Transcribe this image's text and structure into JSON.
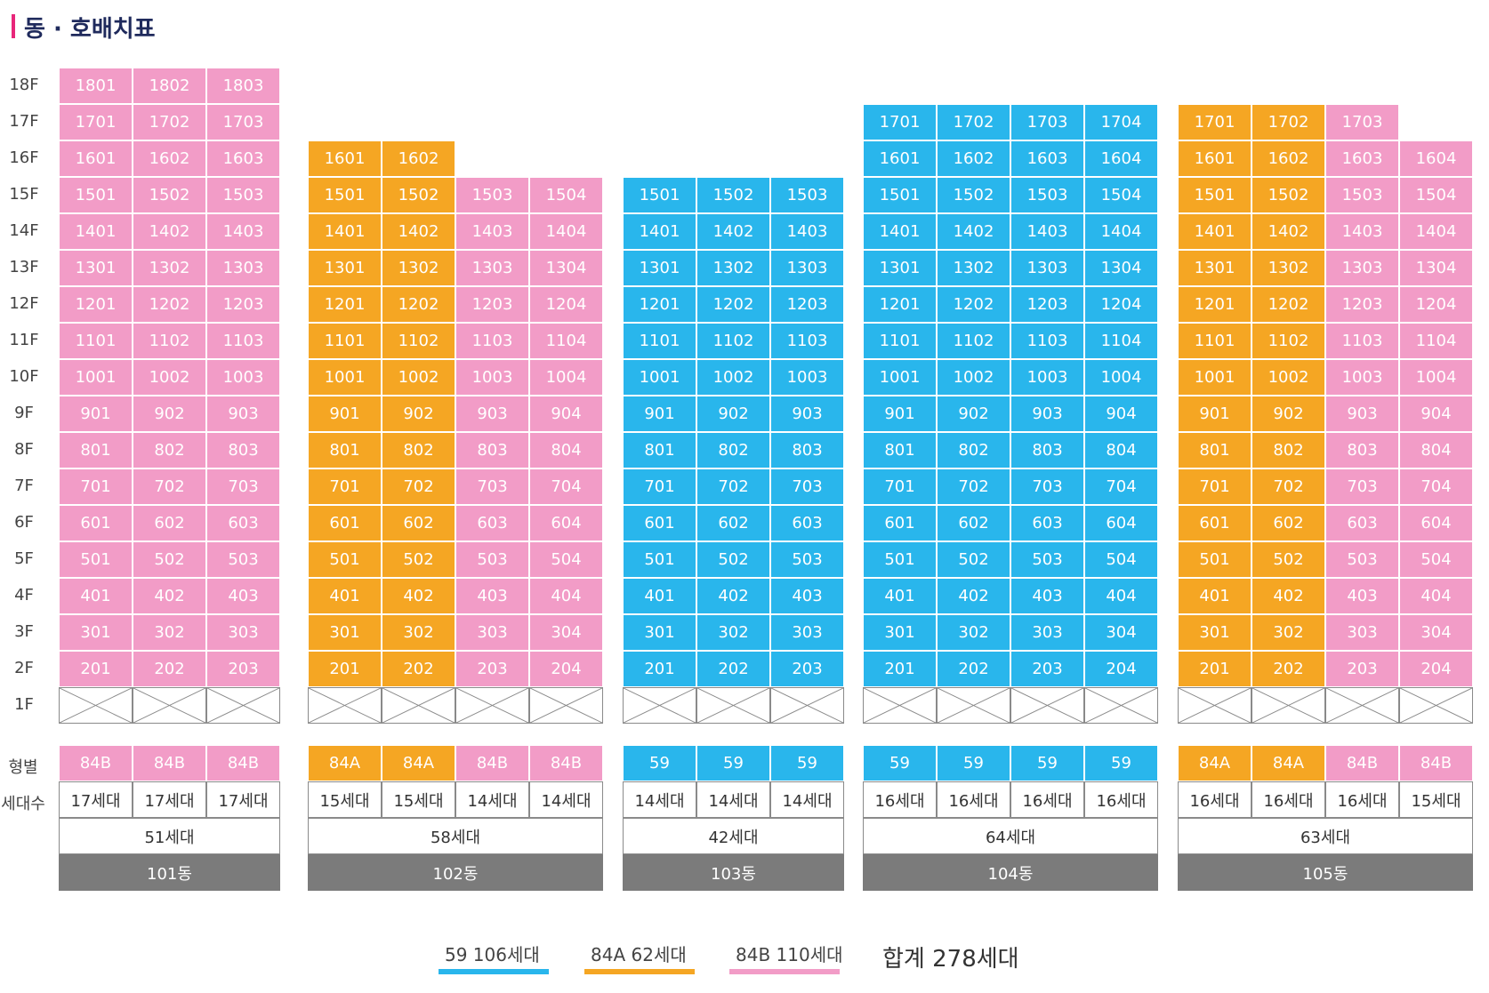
{
  "title": "동 · 호배치표",
  "floors": [
    "18F",
    "17F",
    "16F",
    "15F",
    "14F",
    "13F",
    "12F",
    "11F",
    "10F",
    "9F",
    "8F",
    "7F",
    "6F",
    "5F",
    "4F",
    "3F",
    "2F",
    "1F"
  ],
  "row_labels": {
    "type": "형별",
    "households": "세대수"
  },
  "colors": {
    "59": "#29b6ec",
    "84A": "#f5a623",
    "84B": "#f29cc7",
    "building": "#7b7b7b",
    "title_accent": "#e8267a"
  },
  "buildings": [
    {
      "name": "101동",
      "total": "51세대",
      "lines": [
        {
          "type": "84B",
          "count": "17세대",
          "top_floor": 18,
          "unit_suffix": "01"
        },
        {
          "type": "84B",
          "count": "17세대",
          "top_floor": 18,
          "unit_suffix": "02"
        },
        {
          "type": "84B",
          "count": "17세대",
          "top_floor": 18,
          "unit_suffix": "03"
        }
      ]
    },
    {
      "name": "102동",
      "total": "58세대",
      "lines": [
        {
          "type": "84A",
          "count": "15세대",
          "top_floor": 16,
          "unit_suffix": "01"
        },
        {
          "type": "84A",
          "count": "15세대",
          "top_floor": 16,
          "unit_suffix": "02"
        },
        {
          "type": "84B",
          "count": "14세대",
          "top_floor": 15,
          "unit_suffix": "03"
        },
        {
          "type": "84B",
          "count": "14세대",
          "top_floor": 15,
          "unit_suffix": "04"
        }
      ]
    },
    {
      "name": "103동",
      "total": "42세대",
      "lines": [
        {
          "type": "59",
          "count": "14세대",
          "top_floor": 15,
          "unit_suffix": "01"
        },
        {
          "type": "59",
          "count": "14세대",
          "top_floor": 15,
          "unit_suffix": "02"
        },
        {
          "type": "59",
          "count": "14세대",
          "top_floor": 15,
          "unit_suffix": "03"
        }
      ]
    },
    {
      "name": "104동",
      "total": "64세대",
      "lines": [
        {
          "type": "59",
          "count": "16세대",
          "top_floor": 17,
          "unit_suffix": "01"
        },
        {
          "type": "59",
          "count": "16세대",
          "top_floor": 17,
          "unit_suffix": "02"
        },
        {
          "type": "59",
          "count": "16세대",
          "top_floor": 17,
          "unit_suffix": "03"
        },
        {
          "type": "59",
          "count": "16세대",
          "top_floor": 17,
          "unit_suffix": "04"
        }
      ]
    },
    {
      "name": "105동",
      "total": "63세대",
      "lines": [
        {
          "type": "84A",
          "count": "16세대",
          "top_floor": 17,
          "unit_suffix": "01"
        },
        {
          "type": "84A",
          "count": "16세대",
          "top_floor": 17,
          "unit_suffix": "02"
        },
        {
          "type": "84B",
          "count": "16세대",
          "top_floor": 17,
          "unit_suffix": "03"
        },
        {
          "type": "84B",
          "count": "15세대",
          "top_floor": 16,
          "unit_suffix": "04"
        }
      ]
    }
  ],
  "legend": [
    {
      "type": "59",
      "label": "59  106세대"
    },
    {
      "type": "84A",
      "label": "84A  62세대"
    },
    {
      "type": "84B",
      "label": "84B  110세대"
    }
  ],
  "grand_total": "합계  278세대"
}
